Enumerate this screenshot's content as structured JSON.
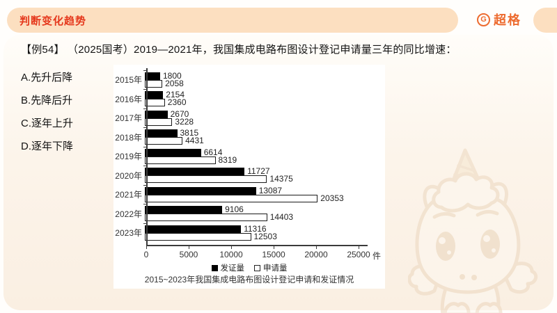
{
  "header": {
    "title": "判断变化趋势",
    "brand": "超格",
    "title_color": "#e5381c",
    "brand_color": "#ed6b2f",
    "pill_color": "#fcdfc0"
  },
  "question": {
    "text": "【例54】 （2025国考）2019—2021年，我国集成电路布图设计登记申请量三年的同比增速：",
    "options": [
      {
        "key": "A",
        "label": "A.先升后降"
      },
      {
        "key": "B",
        "label": "B.先降后升"
      },
      {
        "key": "C",
        "label": "C.逐年上升"
      },
      {
        "key": "D",
        "label": "D.逐年下降"
      }
    ]
  },
  "chart_data": {
    "type": "bar",
    "orientation": "horizontal",
    "title": "2015~2023年我国集成电路布图设计登记申请和发证情况",
    "categories": [
      "2015年",
      "2016年",
      "2017年",
      "2018年",
      "2019年",
      "2020年",
      "2021年",
      "2022年",
      "2023年"
    ],
    "series": [
      {
        "id": "issued",
        "name": "发证量",
        "color": "#000000",
        "style": "filled",
        "values": [
          1800,
          2154,
          2670,
          3815,
          6614,
          11727,
          13087,
          9106,
          11316
        ]
      },
      {
        "id": "applied",
        "name": "申请量",
        "color": "#ffffff",
        "style": "outline",
        "values": [
          2058,
          2360,
          3228,
          4431,
          8319,
          14375,
          20353,
          14403,
          12503
        ]
      }
    ],
    "x_ticks": [
      0,
      5000,
      10000,
      15000,
      20000,
      25000
    ],
    "xlim": [
      0,
      25000
    ],
    "x_unit": "件",
    "grid": false,
    "legend_position": "bottom"
  },
  "decor": {
    "mascot": "unicorn-mascot-watermark"
  }
}
